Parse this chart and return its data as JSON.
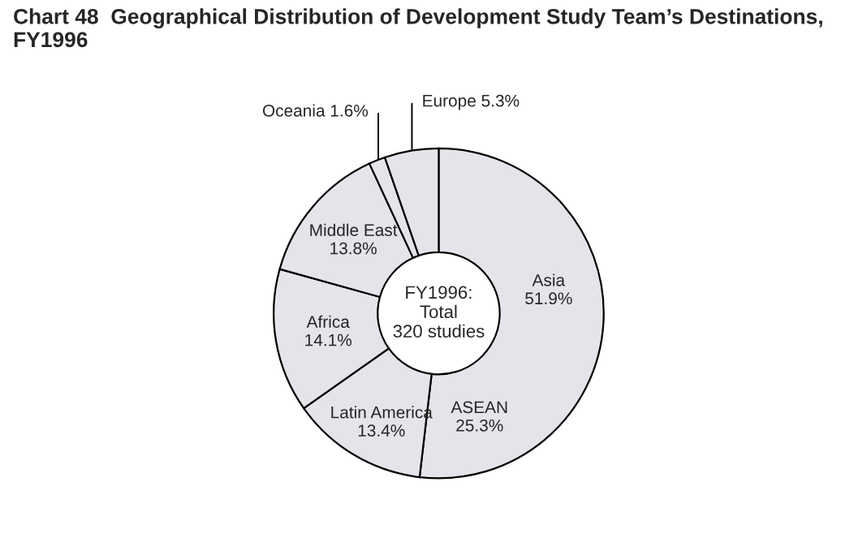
{
  "chart_data": {
    "type": "donut",
    "title": "Chart 48  Geographical Distribution of Development Study Team’s Destinations,\nFY1996",
    "categories": [
      "Asia",
      "Latin America",
      "Africa",
      "Middle East",
      "Oceania",
      "Europe"
    ],
    "values": [
      51.9,
      13.4,
      14.1,
      13.8,
      1.6,
      5.3
    ],
    "value_labels": [
      "51.9%",
      "13.4%",
      "14.1%",
      "13.8%",
      "1.6%",
      "5.3%"
    ],
    "colors": [
      "#e4e4ea",
      "#e4e4ea",
      "#e4e4ea",
      "#e4e4ea",
      "#e4e4ea",
      "#e4e4ea"
    ],
    "annotations": [
      "FY1996:\nTotal\n320 studies",
      "ASEAN\n25.3%"
    ]
  }
}
